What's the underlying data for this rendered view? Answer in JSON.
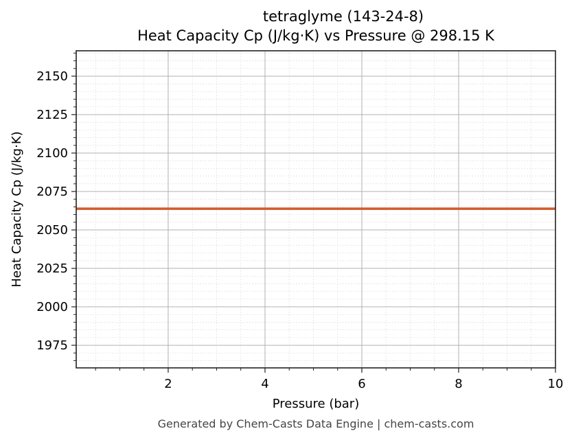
{
  "chart_data": {
    "type": "line",
    "title": "tetraglyme (143-24-8)",
    "subtitle": "Heat Capacity Cp (J/kg·K) vs Pressure @ 298.15 K",
    "xlabel": "Pressure (bar)",
    "ylabel": "Heat Capacity Cp (J/kg·K)",
    "xlim": [
      0.1,
      10
    ],
    "ylim": [
      1960.3,
      2166.5
    ],
    "x_ticks": [
      2,
      4,
      6,
      8,
      10
    ],
    "x_tick_labels": [
      "2",
      "4",
      "6",
      "8",
      "10"
    ],
    "y_ticks": [
      1975,
      2000,
      2025,
      2050,
      2075,
      2100,
      2125,
      2150
    ],
    "y_tick_labels": [
      "1975",
      "2000",
      "2025",
      "2050",
      "2075",
      "2100",
      "2125",
      "2150"
    ],
    "grid": true,
    "minor_grid": true,
    "legend": null,
    "series": [
      {
        "name": "Cp",
        "color": "#d35a2a",
        "x": [
          0.1,
          10
        ],
        "y": [
          2063.8,
          2063.8
        ]
      }
    ],
    "footer": "Generated by Chem-Casts Data Engine | chem-casts.com"
  }
}
